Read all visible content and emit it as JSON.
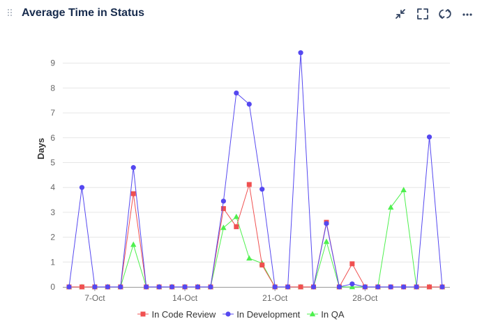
{
  "header": {
    "title": "Average Time in Status",
    "icons": [
      "minimize-icon",
      "fullscreen-icon",
      "refresh-icon",
      "more-options-icon"
    ]
  },
  "chart_data": {
    "type": "line",
    "title": "",
    "xlabel": "",
    "ylabel": "Days",
    "ylim": [
      0,
      10
    ],
    "y_ticks": [
      0,
      1,
      2,
      3,
      4,
      5,
      6,
      7,
      8,
      9
    ],
    "x_tick_labels": [
      {
        "index": 2,
        "label": "7-Oct"
      },
      {
        "index": 9,
        "label": "14-Oct"
      },
      {
        "index": 16,
        "label": "21-Oct"
      },
      {
        "index": 23,
        "label": "28-Oct"
      }
    ],
    "x_range": [
      0,
      29
    ],
    "x": [
      "5-Oct",
      "6-Oct",
      "7-Oct",
      "8-Oct",
      "9-Oct",
      "10-Oct",
      "11-Oct",
      "12-Oct",
      "13-Oct",
      "14-Oct",
      "15-Oct",
      "16-Oct",
      "17-Oct",
      "18-Oct",
      "19-Oct",
      "20-Oct",
      "21-Oct",
      "22-Oct",
      "23-Oct",
      "24-Oct",
      "25-Oct",
      "26-Oct",
      "27-Oct",
      "28-Oct",
      "29-Oct",
      "30-Oct",
      "31-Oct",
      "1-Nov",
      "2-Nov",
      "3-Nov"
    ],
    "grid": true,
    "legend_position": "bottom-center",
    "series": [
      {
        "name": "In Code Review",
        "color": "#f05050",
        "marker": "square",
        "values": [
          0,
          0,
          0,
          0,
          0,
          3.75,
          0,
          0,
          0,
          0,
          0,
          0,
          3.15,
          2.42,
          4.12,
          0.88,
          0,
          0,
          0,
          0,
          2.6,
          0,
          0.93,
          0,
          0,
          0,
          0,
          0,
          0,
          0
        ]
      },
      {
        "name": "In Development",
        "color": "#5548f0",
        "marker": "circle",
        "values": [
          0,
          4.0,
          0,
          0,
          0,
          4.8,
          0,
          0,
          0,
          0,
          0,
          0,
          3.45,
          7.8,
          7.35,
          3.93,
          0,
          0,
          9.42,
          0,
          2.55,
          0,
          0.12,
          0,
          0,
          0,
          0,
          0,
          6.03,
          0
        ]
      },
      {
        "name": "In QA",
        "color": "#4ef04e",
        "marker": "triangle",
        "values": [
          0,
          0,
          0,
          0,
          0,
          1.7,
          0,
          0,
          0,
          0,
          0,
          0,
          2.38,
          2.82,
          1.15,
          0.95,
          0,
          0,
          0,
          0,
          1.82,
          0,
          0,
          0,
          0,
          3.2,
          3.9,
          0,
          0,
          0
        ]
      }
    ]
  }
}
